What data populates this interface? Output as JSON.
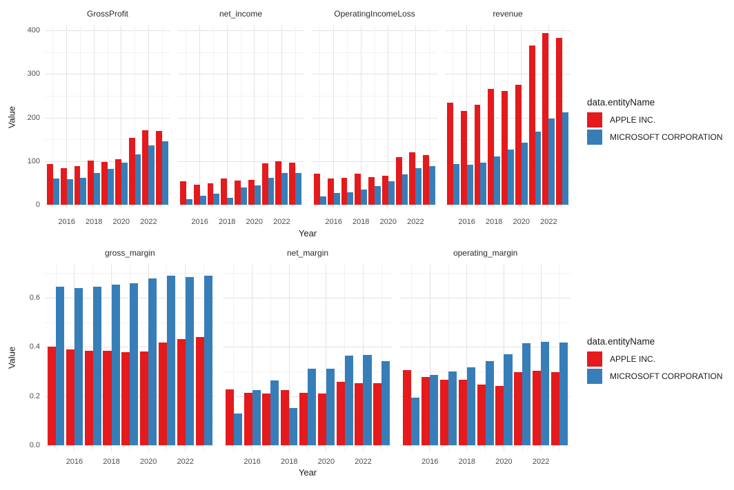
{
  "figure": {
    "y_axis_label": "Value",
    "x_axis_label": "Year",
    "x_tick_labels": [
      "2016",
      "2018",
      "2020",
      "2022"
    ],
    "row1_ytick_labels": [
      "0",
      "100",
      "200",
      "300",
      "400"
    ],
    "row2_ytick_labels": [
      "0.0",
      "0.2",
      "0.4",
      "0.6"
    ]
  },
  "legend": {
    "title": "data.entityName",
    "position": "right",
    "entries": [
      {
        "label": "APPLE INC.",
        "color": "#E41A1C"
      },
      {
        "label": "MICROSOFT CORPORATION",
        "color": "#377EB8"
      }
    ]
  },
  "chart_data": [
    {
      "type": "bar",
      "title": "GrossProfit",
      "row": 1,
      "categories": [
        2015,
        2016,
        2017,
        2018,
        2019,
        2020,
        2021,
        2022,
        2023
      ],
      "series": [
        {
          "name": "APPLE INC.",
          "values": [
            93.6,
            84.3,
            88.2,
            101.8,
            98.4,
            104.9,
            152.8,
            170.8,
            169.1
          ]
        },
        {
          "name": "MICROSOFT CORPORATION",
          "values": [
            60.5,
            58.4,
            62.3,
            72.0,
            82.9,
            96.9,
            115.9,
            135.6,
            146.1
          ]
        }
      ],
      "xlabel": "Year",
      "ylabel": "Value",
      "ylim": [
        0,
        411
      ],
      "yticks": [
        0,
        100,
        200,
        300,
        400
      ],
      "grid": true
    },
    {
      "type": "bar",
      "title": "net_income",
      "row": 1,
      "categories": [
        2015,
        2016,
        2017,
        2018,
        2019,
        2020,
        2021,
        2022,
        2023
      ],
      "series": [
        {
          "name": "APPLE INC.",
          "values": [
            53.4,
            45.7,
            48.4,
            59.5,
            55.3,
            57.4,
            94.7,
            99.8,
            97.0
          ]
        },
        {
          "name": "MICROSOFT CORPORATION",
          "values": [
            12.2,
            20.5,
            25.5,
            16.6,
            39.2,
            44.3,
            61.3,
            72.7,
            72.4
          ]
        }
      ],
      "xlabel": "Year",
      "ylabel": "Value",
      "ylim": [
        0,
        411
      ],
      "yticks": [
        0,
        100,
        200,
        300,
        400
      ],
      "grid": true
    },
    {
      "type": "bar",
      "title": "OperatingIncomeLoss",
      "row": 1,
      "categories": [
        2015,
        2016,
        2017,
        2018,
        2019,
        2020,
        2021,
        2022,
        2023
      ],
      "series": [
        {
          "name": "APPLE INC.",
          "values": [
            71.2,
            60.0,
            61.3,
            70.9,
            63.9,
            66.3,
            108.9,
            119.4,
            114.3
          ]
        },
        {
          "name": "MICROSOFT CORPORATION",
          "values": [
            18.2,
            26.1,
            29.0,
            35.1,
            43.0,
            53.0,
            69.9,
            83.4,
            88.5
          ]
        }
      ],
      "xlabel": "Year",
      "ylabel": "Value",
      "ylim": [
        0,
        411
      ],
      "yticks": [
        0,
        100,
        200,
        300,
        400
      ],
      "grid": true
    },
    {
      "type": "bar",
      "title": "revenue",
      "row": 1,
      "categories": [
        2015,
        2016,
        2017,
        2018,
        2019,
        2020,
        2021,
        2022,
        2023
      ],
      "series": [
        {
          "name": "APPLE INC.",
          "values": [
            233.7,
            215.6,
            229.2,
            265.6,
            260.2,
            274.5,
            365.8,
            394.3,
            383.3
          ]
        },
        {
          "name": "MICROSOFT CORPORATION",
          "values": [
            93.6,
            91.2,
            96.6,
            110.4,
            125.8,
            143.0,
            168.1,
            198.3,
            211.9
          ]
        }
      ],
      "xlabel": "Year",
      "ylabel": "Value",
      "ylim": [
        0,
        411
      ],
      "yticks": [
        0,
        100,
        200,
        300,
        400
      ],
      "grid": true
    },
    {
      "type": "bar",
      "title": "gross_margin",
      "row": 2,
      "categories": [
        2015,
        2016,
        2017,
        2018,
        2019,
        2020,
        2021,
        2022,
        2023
      ],
      "series": [
        {
          "name": "APPLE INC.",
          "values": [
            0.401,
            0.391,
            0.385,
            0.383,
            0.378,
            0.382,
            0.418,
            0.433,
            0.441
          ]
        },
        {
          "name": "MICROSOFT CORPORATION",
          "values": [
            0.646,
            0.64,
            0.645,
            0.652,
            0.659,
            0.678,
            0.689,
            0.684,
            0.689
          ]
        }
      ],
      "xlabel": "Year",
      "ylabel": "Value",
      "ylim": [
        0,
        0.73
      ],
      "yticks": [
        0.0,
        0.2,
        0.4,
        0.6
      ],
      "grid": true
    },
    {
      "type": "bar",
      "title": "net_margin",
      "row": 2,
      "categories": [
        2015,
        2016,
        2017,
        2018,
        2019,
        2020,
        2021,
        2022,
        2023
      ],
      "series": [
        {
          "name": "APPLE INC.",
          "values": [
            0.228,
            0.212,
            0.211,
            0.224,
            0.212,
            0.209,
            0.259,
            0.253,
            0.253
          ]
        },
        {
          "name": "MICROSOFT CORPORATION",
          "values": [
            0.13,
            0.225,
            0.264,
            0.15,
            0.312,
            0.31,
            0.365,
            0.367,
            0.342
          ]
        }
      ],
      "xlabel": "Year",
      "ylabel": "Value",
      "ylim": [
        0,
        0.73
      ],
      "yticks": [
        0.0,
        0.2,
        0.4,
        0.6
      ],
      "grid": true
    },
    {
      "type": "bar",
      "title": "operating_margin",
      "row": 2,
      "categories": [
        2015,
        2016,
        2017,
        2018,
        2019,
        2020,
        2021,
        2022,
        2023
      ],
      "series": [
        {
          "name": "APPLE INC.",
          "values": [
            0.305,
            0.278,
            0.267,
            0.267,
            0.246,
            0.241,
            0.298,
            0.303,
            0.298
          ]
        },
        {
          "name": "MICROSOFT CORPORATION",
          "values": [
            0.194,
            0.286,
            0.3,
            0.318,
            0.342,
            0.371,
            0.416,
            0.42,
            0.418
          ]
        }
      ],
      "xlabel": "Year",
      "ylabel": "Value",
      "ylim": [
        0,
        0.73
      ],
      "yticks": [
        0.0,
        0.2,
        0.4,
        0.6
      ],
      "grid": true
    }
  ]
}
